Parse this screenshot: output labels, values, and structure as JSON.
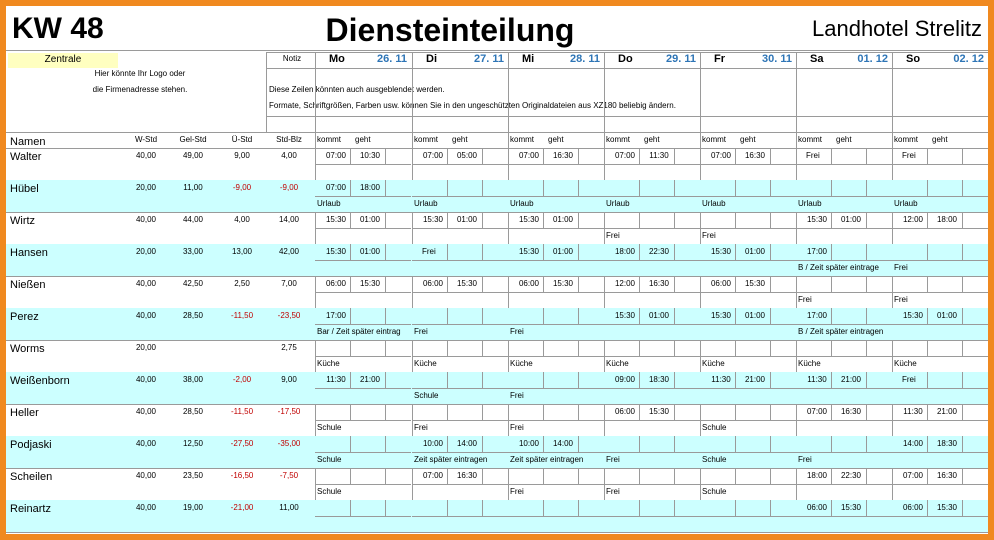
{
  "header": {
    "week": "KW 48",
    "title": "Diensteinteilung",
    "hotel": "Landhotel Strelitz"
  },
  "zentrale": "Zentrale",
  "notiz": "Notiz",
  "logo_lines": [
    "Hier könnte Ihr Logo oder",
    "die Firmenadresse stehen."
  ],
  "info_lines": [
    "Diese Zeilen könnten auch ausgeblendet werden.",
    "Formate, Schriftgrößen, Farben usw. können Sie in den ungeschützten Originaldateien aus XZ180 beliebig ändern."
  ],
  "days": [
    {
      "name": "Mo",
      "date": "26. 11"
    },
    {
      "name": "Di",
      "date": "27. 11"
    },
    {
      "name": "Mi",
      "date": "28. 11"
    },
    {
      "name": "Do",
      "date": "29. 11"
    },
    {
      "name": "Fr",
      "date": "30. 11"
    },
    {
      "name": "Sa",
      "date": "01. 12"
    },
    {
      "name": "So",
      "date": "02. 12"
    }
  ],
  "columns": {
    "name": "Namen",
    "w": "W-Std",
    "gel": "Gel-Std",
    "ue": "Ü-Std",
    "blz": "Std-Blz",
    "kommt": "kommt",
    "geht": "geht"
  },
  "employees": [
    {
      "name": "Walter",
      "w": "40,00",
      "gel": "49,00",
      "ue": "9,00",
      "blz": "4,00",
      "days": [
        {
          "kommt": "07:00",
          "geht": "10:30"
        },
        {
          "kommt": "07:00",
          "geht": "05:00"
        },
        {
          "kommt": "07:00",
          "geht": "16:30"
        },
        {
          "kommt": "07:00",
          "geht": "11:30"
        },
        {
          "kommt": "07:00",
          "geht": "16:30"
        },
        {
          "kommt": "Frei"
        },
        {
          "kommt": "Frei"
        }
      ]
    },
    {
      "name": "Hübel",
      "w": "20,00",
      "gel": "11,00",
      "ue": "-9,00",
      "blz": "-9,00",
      "days": [
        {
          "kommt": "07:00",
          "geht": "18:00",
          "note": "Urlaub"
        },
        {
          "note": "Urlaub"
        },
        {
          "note": "Urlaub"
        },
        {
          "note": "Urlaub"
        },
        {
          "note": "Urlaub"
        },
        {
          "note": "Urlaub"
        },
        {
          "note": "Urlaub"
        }
      ]
    },
    {
      "name": "Wirtz",
      "w": "40,00",
      "gel": "44,00",
      "ue": "4,00",
      "blz": "14,00",
      "days": [
        {
          "kommt": "15:30",
          "geht": "01:00"
        },
        {
          "kommt": "15:30",
          "geht": "01:00"
        },
        {
          "kommt": "15:30",
          "geht": "01:00"
        },
        {
          "note": "Frei"
        },
        {
          "note": "Frei"
        },
        {
          "kommt": "15:30",
          "geht": "01:00"
        },
        {
          "kommt": "12:00",
          "geht": "18:00"
        }
      ]
    },
    {
      "name": "Hansen",
      "w": "20,00",
      "gel": "33,00",
      "ue": "13,00",
      "blz": "42,00",
      "days": [
        {
          "kommt": "15:30",
          "geht": "01:00"
        },
        {
          "kommt": "Frei"
        },
        {
          "kommt": "15:30",
          "geht": "01:00"
        },
        {
          "kommt": "18:00",
          "geht": "22:30"
        },
        {
          "kommt": "15:30",
          "geht": "01:00"
        },
        {
          "kommt": "17:00",
          "note": "B / Zeit später eintrage"
        },
        {
          "note": "Frei"
        }
      ]
    },
    {
      "name": "Nießen",
      "w": "40,00",
      "gel": "42,50",
      "ue": "2,50",
      "blz": "7,00",
      "days": [
        {
          "kommt": "06:00",
          "geht": "15:30"
        },
        {
          "kommt": "06:00",
          "geht": "15:30"
        },
        {
          "kommt": "06:00",
          "geht": "15:30"
        },
        {
          "kommt": "12:00",
          "geht": "16:30"
        },
        {
          "kommt": "06:00",
          "geht": "15:30"
        },
        {
          "note": "Frei"
        },
        {
          "note": "Frei"
        }
      ]
    },
    {
      "name": "Perez",
      "w": "40,00",
      "gel": "28,50",
      "ue": "-11,50",
      "blz": "-23,50",
      "days": [
        {
          "kommt": "17:00",
          "note": "Bar / Zeit später eintrag"
        },
        {
          "note": "Frei"
        },
        {
          "note": "Frei"
        },
        {
          "kommt": "15:30",
          "geht": "01:00"
        },
        {
          "kommt": "15:30",
          "geht": "01:00"
        },
        {
          "kommt": "17:00",
          "note": "B / Zeit später eintragen"
        },
        {
          "kommt": "15:30",
          "geht": "01:00"
        }
      ]
    },
    {
      "name": "Worms",
      "w": "20,00",
      "blz": "2,75",
      "days": [
        {
          "note": "Küche"
        },
        {
          "note": "Küche"
        },
        {
          "note": "Küche"
        },
        {
          "note": "Küche"
        },
        {
          "note": "Küche"
        },
        {
          "note": "Küche"
        },
        {
          "note": "Küche"
        }
      ]
    },
    {
      "name": "Weißenborn",
      "w": "40,00",
      "gel": "38,00",
      "ue": "-2,00",
      "blz": "9,00",
      "days": [
        {
          "kommt": "11:30",
          "geht": "21:00"
        },
        {
          "note": "Schule"
        },
        {
          "note": "Frei"
        },
        {
          "kommt": "09:00",
          "geht": "18:30"
        },
        {
          "kommt": "11:30",
          "geht": "21:00"
        },
        {
          "kommt": "11:30",
          "geht": "21:00"
        },
        {
          "kommt": "Frei"
        }
      ]
    },
    {
      "name": "Heller",
      "w": "40,00",
      "gel": "28,50",
      "ue": "-11,50",
      "blz": "-17,50",
      "days": [
        {
          "note": "Schule"
        },
        {
          "note": "Frei"
        },
        {
          "note": "Frei"
        },
        {
          "kommt": "06:00",
          "geht": "15:30"
        },
        {
          "note": "Schule"
        },
        {
          "kommt": "07:00",
          "geht": "16:30"
        },
        {
          "kommt": "11:30",
          "geht": "21:00"
        }
      ]
    },
    {
      "name": "Podjaski",
      "w": "40,00",
      "gel": "12,50",
      "ue": "-27,50",
      "blz": "-35,00",
      "days": [
        {
          "note": "Schule"
        },
        {
          "kommt": "10:00",
          "geht": "14:00",
          "note": "Zeit später eintragen"
        },
        {
          "kommt": "10:00",
          "geht": "14:00",
          "note": "Zeit später eintragen"
        },
        {
          "note": "Frei"
        },
        {
          "note": "Schule"
        },
        {
          "note": "Frei"
        },
        {
          "kommt": "14:00",
          "geht": "18:30"
        }
      ]
    },
    {
      "name": "Scheilen",
      "w": "40,00",
      "gel": "23,50",
      "ue": "-16,50",
      "blz": "-7,50",
      "days": [
        {
          "note": "Schule"
        },
        {
          "kommt": "07:00",
          "geht": "16:30"
        },
        {
          "note": "Frei"
        },
        {
          "note": "Frei"
        },
        {
          "note": "Schule"
        },
        {
          "kommt": "18:00",
          "geht": "22:30"
        },
        {
          "kommt": "07:00",
          "geht": "16:30"
        }
      ]
    },
    {
      "name": "Reinartz",
      "w": "40,00",
      "gel": "19,00",
      "ue": "-21,00",
      "blz": "11,00",
      "days": [
        {},
        {},
        {},
        {},
        {},
        {
          "kommt": "06:00",
          "geht": "15:30"
        },
        {
          "kommt": "06:00",
          "geht": "15:30"
        }
      ]
    }
  ]
}
